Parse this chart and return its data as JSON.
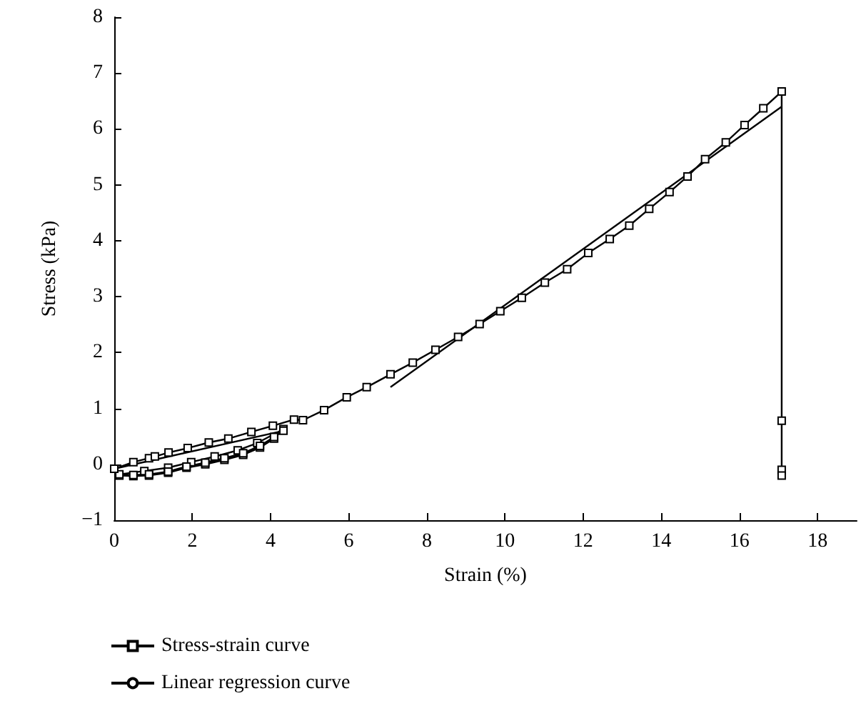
{
  "chart_data": {
    "type": "line",
    "xlabel": "Strain (%)",
    "ylabel": "Stress (kPa)",
    "xlim": [
      0,
      19
    ],
    "ylim": [
      -1,
      8
    ],
    "xticks": [
      0,
      2,
      4,
      6,
      8,
      10,
      12,
      14,
      16,
      18
    ],
    "yticks": [
      {
        "value": -1,
        "label": "−1"
      },
      0,
      1,
      2,
      3,
      4,
      5,
      6,
      7,
      8
    ],
    "grid": false,
    "legend": "bottom left",
    "series": [
      {
        "name": "Stress-strain curve",
        "color": "#000000",
        "marker": "square",
        "line_style": "solid",
        "x": [
          0.13,
          0.49,
          0.89,
          1.38,
          1.85,
          2.33,
          2.82,
          3.3,
          3.73,
          4.09,
          4.33,
          3.66,
          3.16,
          2.57,
          1.97,
          1.38,
          0.77,
          0.13,
          0.49,
          0.89,
          1.38,
          1.85,
          2.33,
          2.82,
          3.3,
          3.73,
          4.09,
          4.33,
          0,
          0.49,
          0.89,
          1.04,
          1.39,
          1.88,
          2.42,
          2.92,
          3.51,
          4.06,
          4.6,
          4.83,
          5.37,
          5.95,
          6.46,
          7.07,
          7.64,
          8.22,
          8.8,
          9.35,
          9.88,
          10.43,
          11.02,
          11.59,
          12.13,
          12.68,
          13.18,
          13.69,
          14.21,
          14.67,
          15.12,
          15.65,
          16.13,
          16.61,
          17.08,
          17.08,
          17.08,
          17.08
        ],
        "values": [
          -0.2,
          -0.21,
          -0.2,
          -0.15,
          -0.06,
          0.0,
          0.08,
          0.17,
          0.3,
          0.46,
          0.63,
          0.38,
          0.25,
          0.14,
          0.04,
          -0.06,
          -0.12,
          -0.18,
          -0.19,
          -0.18,
          -0.13,
          -0.04,
          0.03,
          0.11,
          0.2,
          0.33,
          0.49,
          0.6,
          -0.08,
          0.04,
          0.11,
          0.14,
          0.21,
          0.29,
          0.39,
          0.46,
          0.58,
          0.69,
          0.8,
          0.79,
          0.97,
          1.2,
          1.38,
          1.61,
          1.82,
          2.05,
          2.28,
          2.51,
          2.74,
          2.98,
          3.25,
          3.49,
          3.78,
          4.03,
          4.27,
          4.57,
          4.87,
          5.15,
          5.46,
          5.76,
          6.07,
          6.37,
          6.67,
          0.78,
          -0.1,
          -0.2
        ]
      },
      {
        "name": "Linear regression curve",
        "color": "#000000",
        "marker": "none",
        "line_style": "solid",
        "x": [
          7.07,
          17.08
        ],
        "values": [
          1.38,
          6.4
        ]
      }
    ]
  }
}
